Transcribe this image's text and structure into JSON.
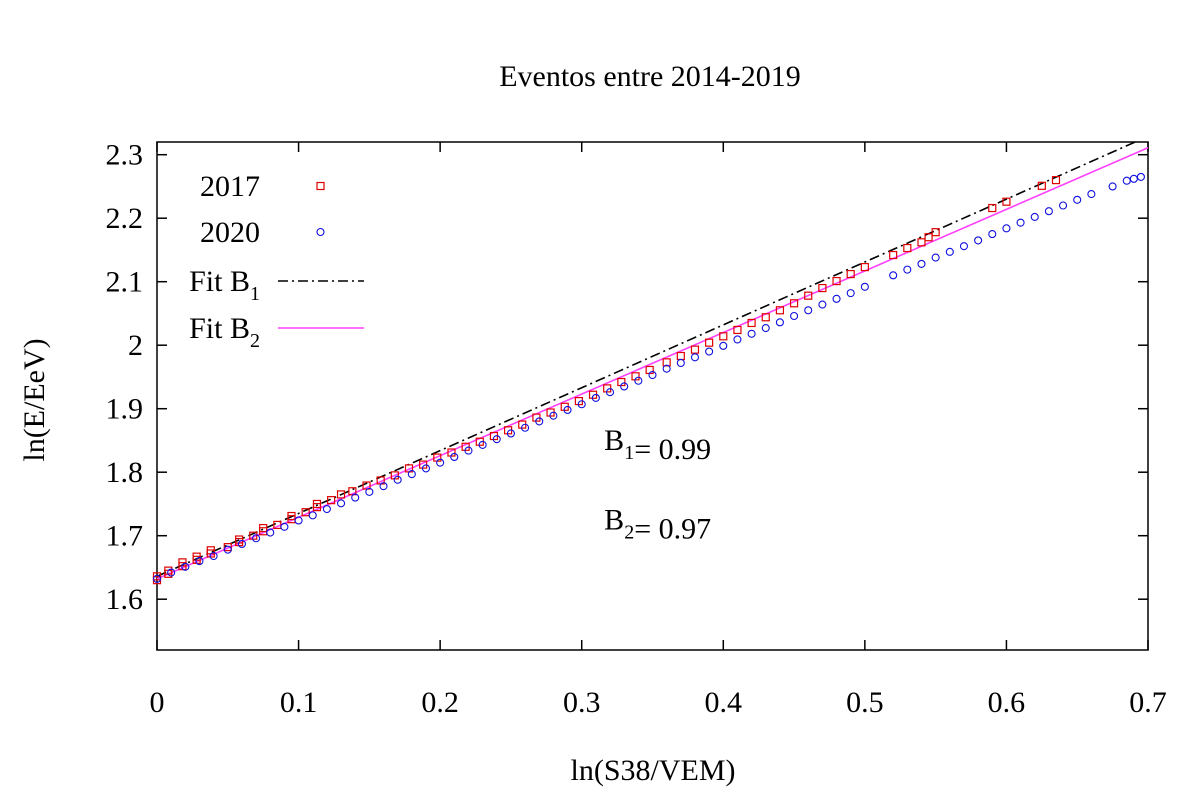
{
  "chart_data": {
    "type": "scatter",
    "title": "Eventos entre 2014-2019",
    "xlabel": "ln(S38/VEM)",
    "ylabel": "ln(E/EeV)",
    "xlim": [
      0,
      0.7
    ],
    "ylim": [
      1.52,
      2.32
    ],
    "xticks": [
      0,
      0.1,
      0.2,
      0.3,
      0.4,
      0.5,
      0.6,
      0.7
    ],
    "xtick_labels": [
      "0",
      "0.1",
      "0.2",
      "0.3",
      "0.4",
      "0.5",
      "0.6",
      "0.7"
    ],
    "yticks": [
      1.6,
      1.7,
      1.8,
      1.9,
      2.0,
      2.1,
      2.2,
      2.3
    ],
    "ytick_labels": [
      "1.6",
      "1.7",
      "1.8",
      "1.9",
      "2",
      "2.1",
      "2.2",
      "2.3"
    ],
    "grid": false,
    "legend_position": "top-left",
    "series": [
      {
        "name": "2017",
        "kind": "points",
        "marker": "square",
        "color": "#e00000",
        "points": [
          [
            0.0,
            1.636
          ],
          [
            0.0,
            1.63
          ],
          [
            0.008,
            1.645
          ],
          [
            0.008,
            1.64
          ],
          [
            0.018,
            1.652
          ],
          [
            0.018,
            1.658
          ],
          [
            0.028,
            1.662
          ],
          [
            0.028,
            1.667
          ],
          [
            0.038,
            1.672
          ],
          [
            0.038,
            1.677
          ],
          [
            0.05,
            1.682
          ],
          [
            0.058,
            1.69
          ],
          [
            0.058,
            1.694
          ],
          [
            0.068,
            1.7
          ],
          [
            0.075,
            1.707
          ],
          [
            0.075,
            1.712
          ],
          [
            0.085,
            1.717
          ],
          [
            0.095,
            1.726
          ],
          [
            0.095,
            1.731
          ],
          [
            0.105,
            1.737
          ],
          [
            0.113,
            1.745
          ],
          [
            0.113,
            1.75
          ],
          [
            0.123,
            1.756
          ],
          [
            0.13,
            1.765
          ],
          [
            0.138,
            1.77
          ],
          [
            0.148,
            1.779
          ],
          [
            0.158,
            1.787
          ],
          [
            0.168,
            1.795
          ],
          [
            0.178,
            1.806
          ],
          [
            0.188,
            1.812
          ],
          [
            0.198,
            1.823
          ],
          [
            0.208,
            1.831
          ],
          [
            0.218,
            1.84
          ],
          [
            0.228,
            1.848
          ],
          [
            0.238,
            1.857
          ],
          [
            0.248,
            1.866
          ],
          [
            0.258,
            1.875
          ],
          [
            0.268,
            1.886
          ],
          [
            0.278,
            1.894
          ],
          [
            0.288,
            1.903
          ],
          [
            0.298,
            1.912
          ],
          [
            0.308,
            1.922
          ],
          [
            0.318,
            1.932
          ],
          [
            0.328,
            1.942
          ],
          [
            0.338,
            1.951
          ],
          [
            0.348,
            1.961
          ],
          [
            0.36,
            1.973
          ],
          [
            0.37,
            1.983
          ],
          [
            0.38,
            1.993
          ],
          [
            0.39,
            2.004
          ],
          [
            0.4,
            2.014
          ],
          [
            0.41,
            2.024
          ],
          [
            0.42,
            2.035
          ],
          [
            0.43,
            2.044
          ],
          [
            0.44,
            2.055
          ],
          [
            0.45,
            2.066
          ],
          [
            0.46,
            2.078
          ],
          [
            0.47,
            2.09
          ],
          [
            0.48,
            2.101
          ],
          [
            0.49,
            2.112
          ],
          [
            0.5,
            2.123
          ],
          [
            0.52,
            2.142
          ],
          [
            0.53,
            2.153
          ],
          [
            0.54,
            2.162
          ],
          [
            0.545,
            2.17
          ],
          [
            0.55,
            2.178
          ],
          [
            0.59,
            2.216
          ],
          [
            0.6,
            2.226
          ],
          [
            0.625,
            2.251
          ],
          [
            0.635,
            2.26
          ]
        ]
      },
      {
        "name": "2020",
        "kind": "points",
        "marker": "circle",
        "color": "#1010e0",
        "points": [
          [
            0.0,
            1.632
          ],
          [
            0.01,
            1.642
          ],
          [
            0.02,
            1.651
          ],
          [
            0.03,
            1.66
          ],
          [
            0.04,
            1.668
          ],
          [
            0.05,
            1.678
          ],
          [
            0.06,
            1.687
          ],
          [
            0.07,
            1.696
          ],
          [
            0.08,
            1.705
          ],
          [
            0.09,
            1.714
          ],
          [
            0.1,
            1.724
          ],
          [
            0.11,
            1.732
          ],
          [
            0.12,
            1.742
          ],
          [
            0.13,
            1.751
          ],
          [
            0.14,
            1.76
          ],
          [
            0.15,
            1.769
          ],
          [
            0.16,
            1.778
          ],
          [
            0.17,
            1.788
          ],
          [
            0.18,
            1.797
          ],
          [
            0.19,
            1.806
          ],
          [
            0.2,
            1.815
          ],
          [
            0.21,
            1.824
          ],
          [
            0.22,
            1.834
          ],
          [
            0.23,
            1.843
          ],
          [
            0.24,
            1.852
          ],
          [
            0.25,
            1.861
          ],
          [
            0.26,
            1.87
          ],
          [
            0.27,
            1.88
          ],
          [
            0.28,
            1.889
          ],
          [
            0.29,
            1.898
          ],
          [
            0.3,
            1.907
          ],
          [
            0.31,
            1.917
          ],
          [
            0.32,
            1.926
          ],
          [
            0.33,
            1.935
          ],
          [
            0.34,
            1.944
          ],
          [
            0.35,
            1.953
          ],
          [
            0.36,
            1.963
          ],
          [
            0.37,
            1.972
          ],
          [
            0.38,
            1.981
          ],
          [
            0.39,
            1.99
          ],
          [
            0.4,
            1.999
          ],
          [
            0.41,
            2.009
          ],
          [
            0.42,
            2.018
          ],
          [
            0.43,
            2.027
          ],
          [
            0.44,
            2.036
          ],
          [
            0.45,
            2.046
          ],
          [
            0.46,
            2.055
          ],
          [
            0.47,
            2.064
          ],
          [
            0.48,
            2.073
          ],
          [
            0.49,
            2.082
          ],
          [
            0.5,
            2.092
          ],
          [
            0.52,
            2.11
          ],
          [
            0.53,
            2.119
          ],
          [
            0.54,
            2.128
          ],
          [
            0.55,
            2.138
          ],
          [
            0.56,
            2.147
          ],
          [
            0.57,
            2.156
          ],
          [
            0.58,
            2.165
          ],
          [
            0.59,
            2.175
          ],
          [
            0.6,
            2.184
          ],
          [
            0.61,
            2.193
          ],
          [
            0.62,
            2.202
          ],
          [
            0.63,
            2.211
          ],
          [
            0.64,
            2.22
          ],
          [
            0.65,
            2.229
          ],
          [
            0.66,
            2.238
          ],
          [
            0.675,
            2.25
          ],
          [
            0.685,
            2.259
          ],
          [
            0.69,
            2.262
          ],
          [
            0.695,
            2.265
          ]
        ]
      },
      {
        "name": "Fit B₁",
        "kind": "line",
        "dash": "dash-dot",
        "color": "#000000",
        "x": [
          0,
          0.7
        ],
        "y": [
          1.636,
          2.329
        ]
      },
      {
        "name": "Fit B₂",
        "kind": "line",
        "dash": "solid",
        "color": "#ff40ff",
        "x": [
          0,
          0.7
        ],
        "y": [
          1.632,
          2.311
        ]
      }
    ],
    "annotations": [
      {
        "text": "B₁= 0.99",
        "x": 0.33,
        "y": 1.835
      },
      {
        "text": "B₂= 0.97",
        "x": 0.33,
        "y": 1.71
      }
    ]
  }
}
